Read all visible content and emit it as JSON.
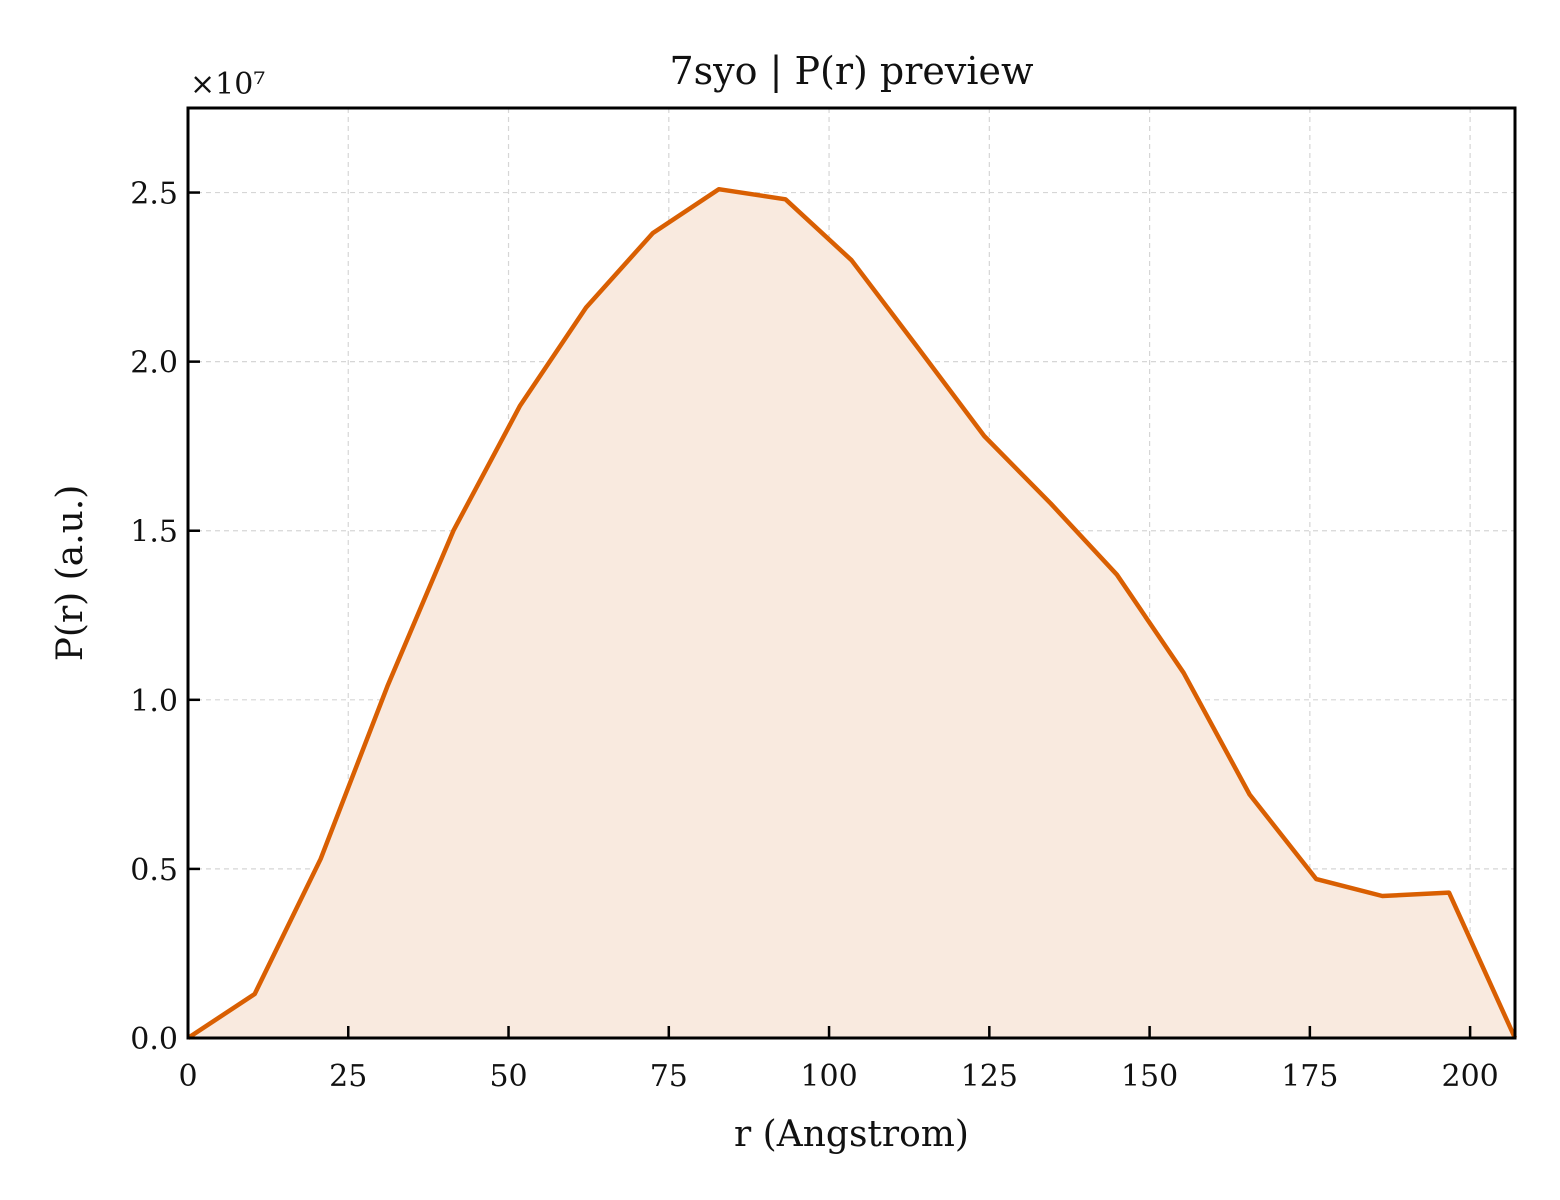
{
  "chart_data": {
    "type": "area",
    "title": "7syo | P(r) preview",
    "xlabel": "r (Angstrom)",
    "ylabel": "P(r) (a.u.)",
    "y_multiplier_label": "×10⁷",
    "xlim": [
      0,
      207
    ],
    "ylim": [
      0,
      2.75
    ],
    "x_ticks": [
      0,
      25,
      50,
      75,
      100,
      125,
      150,
      175,
      200
    ],
    "x_tick_labels": [
      "0",
      "25",
      "50",
      "75",
      "100",
      "125",
      "150",
      "175",
      "200"
    ],
    "y_ticks": [
      0.0,
      0.5,
      1.0,
      1.5,
      2.0,
      2.5
    ],
    "y_tick_labels": [
      "0.0",
      "0.5",
      "1.0",
      "1.5",
      "2.0",
      "2.5"
    ],
    "grid": true,
    "legend": false,
    "line_color": "#d95f02",
    "fill_color": "#f9eadf",
    "series": [
      {
        "x": [
          0,
          10.4,
          20.7,
          31.1,
          41.4,
          51.8,
          62.1,
          72.5,
          82.8,
          93.2,
          103.5,
          113.9,
          124.2,
          134.6,
          144.9,
          155.3,
          165.6,
          176.0,
          186.3,
          196.7,
          207.0
        ],
        "y": [
          0.0,
          0.13,
          0.53,
          1.04,
          1.5,
          1.87,
          2.16,
          2.38,
          2.51,
          2.48,
          2.3,
          2.04,
          1.78,
          1.58,
          1.37,
          1.08,
          0.72,
          0.47,
          0.42,
          0.43,
          0.0
        ]
      }
    ]
  }
}
